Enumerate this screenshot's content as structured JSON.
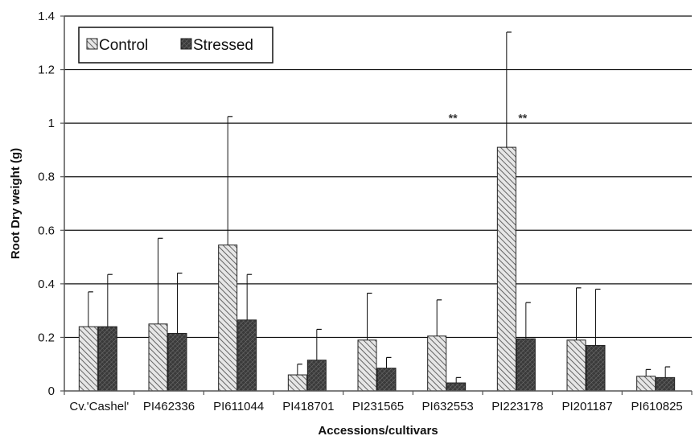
{
  "chart_data": {
    "type": "bar",
    "xlabel": "Accessions/cultivars",
    "ylabel": "Root Dry weight (g)",
    "ylim": [
      0,
      1.4
    ],
    "yticks": [
      "0",
      "0.2",
      "0.4",
      "0.6",
      "0.8",
      "1",
      "1.2",
      "1.4"
    ],
    "grid": "horizontal",
    "legend_position": "top-left",
    "categories": [
      "Cv.'Cashel'",
      "PI462336",
      "PI611044",
      "PI418701",
      "PI231565",
      "PI632553",
      "PI223178",
      "PI201187",
      "PI610825"
    ],
    "series": [
      {
        "name": "Control",
        "pattern": "diagonal-hatch",
        "color": "#bdbdbd",
        "values": [
          0.24,
          0.25,
          0.545,
          0.06,
          0.19,
          0.205,
          0.91,
          0.19,
          0.055
        ],
        "error": [
          0.13,
          0.32,
          0.48,
          0.04,
          0.175,
          0.135,
          0.43,
          0.195,
          0.025
        ]
      },
      {
        "name": "Stressed",
        "pattern": "dense-crosshatch",
        "color": "#4a4a4a",
        "values": [
          0.24,
          0.215,
          0.265,
          0.115,
          0.085,
          0.03,
          0.195,
          0.17,
          0.05
        ],
        "error": [
          0.195,
          0.225,
          0.17,
          0.115,
          0.04,
          0.02,
          0.135,
          0.21,
          0.04
        ]
      }
    ],
    "annotations": [
      {
        "category_index": 5,
        "text": "**",
        "y": 1.02
      },
      {
        "category_index": 6,
        "text": "**",
        "y": 1.02
      }
    ],
    "colors": {
      "control_fill": "#bdbdbd",
      "stressed_fill": "#4a4a4a",
      "grid": "#111111",
      "axis": "#555555"
    }
  }
}
